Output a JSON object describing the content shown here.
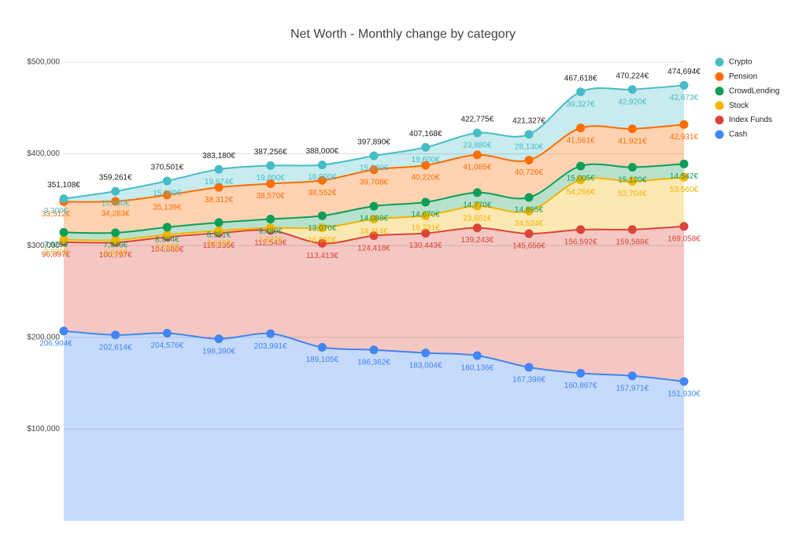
{
  "chart_data": {
    "type": "stacked-area",
    "title": "Net Worth - Monthly change by category",
    "ylim": [
      0,
      500000
    ],
    "yticks": [
      {
        "value": 100000,
        "label": "$100,000"
      },
      {
        "value": 200000,
        "label": "$200,000"
      },
      {
        "value": 300000,
        "label": "$300,000"
      },
      {
        "value": 400000,
        "label": "$400,000"
      },
      {
        "value": 500000,
        "label": "$500,000"
      }
    ],
    "grid": true,
    "legend": "right",
    "series": [
      {
        "name": "Crypto",
        "color": "#46bdc6",
        "values": [
          3200,
          10980,
          15300,
          19674,
          19800,
          16900,
          15200,
          19600,
          23880,
          28130,
          39327,
          42920,
          42673
        ],
        "value_labels": [
          "3,200€",
          "10,980€",
          "15,300€",
          "19,674€",
          "19,800€",
          "16,900€",
          "15,200€",
          "19,600€",
          "23,880€",
          "28,130€",
          "39,327€",
          "42,920€",
          "42,673€"
        ]
      },
      {
        "name": "Pension",
        "color": "#ff6d01",
        "values": [
          33512,
          34283,
          35139,
          38312,
          38570,
          38552,
          39708,
          40220,
          41085,
          40726,
          41561,
          41921,
          42931
        ],
        "value_labels": [
          "33,512€",
          "34,283€",
          "35,139€",
          "38,312€",
          "38,570€",
          "38,552€",
          "39,708€",
          "40,220€",
          "41,085€",
          "40,726€",
          "41,561€",
          "41,921€",
          "42,931€"
        ]
      },
      {
        "name": "CrowdLending",
        "color": "#0f9d58",
        "values": [
          7925,
          7946,
          8064,
          8951,
          9480,
          13070,
          14088,
          14670,
          14770,
          14895,
          15005,
          15120,
          14542
        ],
        "value_labels": [
          "7,925€",
          "7,946€",
          "8,064€",
          "8,951€",
          "9,480€",
          "13,070€",
          "14,088€",
          "14,670€",
          "14,770€",
          "14,895€",
          "15,005€",
          "15,120€",
          "14,542€"
        ]
      },
      {
        "name": "Stock",
        "color": "#f4b400",
        "values": [
          2670,
          2641,
          2562,
          2618,
          2872,
          16960,
          18114,
          19231,
          23661,
          24524,
          54266,
          52704,
          53560
        ],
        "value_labels": [
          "2,670€",
          "2,641€",
          "2,562€",
          "2,618€",
          "2,872€",
          "16,960€",
          "18,114€",
          "19,231€",
          "23,661€",
          "24,524€",
          "54,266€",
          "52,704€",
          "53,560€"
        ]
      },
      {
        "name": "Index Funds",
        "color": "#db4437",
        "values": [
          96897,
          100797,
          104860,
          115235,
          112543,
          113413,
          124418,
          130443,
          139243,
          145656,
          156592,
          159588,
          169058
        ],
        "value_labels": [
          "96,897€",
          "100,797€",
          "104,860€",
          "115,235€",
          "112,543€",
          "113,413€",
          "124,418€",
          "130,443€",
          "139,243€",
          "145,656€",
          "156,592€",
          "159,588€",
          "169,058€"
        ]
      },
      {
        "name": "Cash",
        "color": "#4285f4",
        "values": [
          206904,
          202614,
          204576,
          198390,
          203991,
          189105,
          186362,
          183004,
          180136,
          167396,
          160867,
          157971,
          151930
        ],
        "value_labels": [
          "206,904€",
          "202,614€",
          "204,576€",
          "198,390€",
          "203,991€",
          "189,105€",
          "186,362€",
          "183,004€",
          "180,136€",
          "167,396€",
          "160,867€",
          "157,971€",
          "151,930€"
        ]
      }
    ],
    "totals": {
      "values": [
        351108,
        359261,
        370501,
        383180,
        387256,
        388000,
        397890,
        407168,
        422775,
        421327,
        467618,
        470224,
        474694
      ],
      "value_labels": [
        "351,108€",
        "359,261€",
        "370,501€",
        "383,180€",
        "387,256€",
        "388,000€",
        "397,890€",
        "407,168€",
        "422,775€",
        "421,327€",
        "467,618€",
        "470,224€",
        "474,694€"
      ]
    }
  }
}
